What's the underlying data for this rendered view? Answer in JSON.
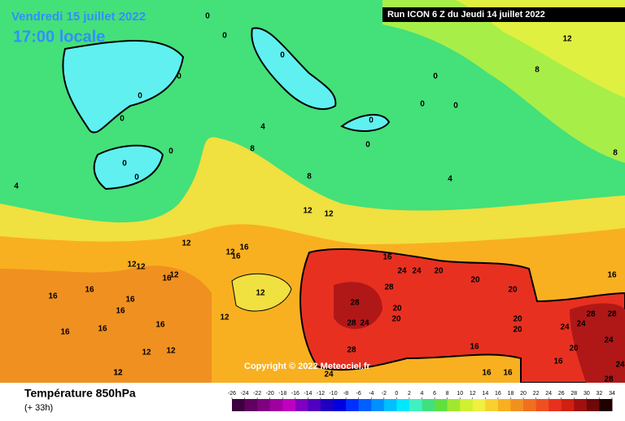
{
  "header": {
    "date": "Vendredi 15 juillet 2022",
    "time": "17:00 locale",
    "run": "Run ICON 6 Z du Jeudi 14 juillet 2022",
    "copyright": "Copyright © 2022 Meteociel.fr"
  },
  "footer": {
    "title": "Température 850hPa",
    "lead": "(+ 33h)"
  },
  "legend": {
    "ticks": [
      -26,
      -24,
      -22,
      -20,
      -18,
      -16,
      -14,
      -12,
      -10,
      -8,
      -6,
      -4,
      -2,
      0,
      2,
      4,
      6,
      8,
      10,
      12,
      14,
      16,
      18,
      20,
      22,
      24,
      26,
      28,
      30,
      32,
      34
    ],
    "colors": [
      "#3c0040",
      "#600060",
      "#800080",
      "#a000a0",
      "#c000c0",
      "#8000c0",
      "#5000c0",
      "#2000c0",
      "#0000e0",
      "#0030ff",
      "#0060ff",
      "#0090ff",
      "#00c0ff",
      "#00e8ff",
      "#40f0c0",
      "#40e080",
      "#60e040",
      "#a0e830",
      "#d0f030",
      "#f0f040",
      "#f8d030",
      "#f8b020",
      "#f09020",
      "#f07020",
      "#f05020",
      "#e83020",
      "#d02010",
      "#a01010",
      "#700808",
      "#200000"
    ]
  },
  "contour_labels": [
    0,
    0,
    0,
    0,
    0,
    0,
    0,
    0,
    0,
    0,
    0,
    0,
    0,
    0,
    4,
    4,
    4,
    8,
    8,
    8,
    8,
    12,
    12,
    12,
    12,
    12,
    12,
    12,
    12,
    12,
    12,
    12,
    16,
    16,
    16,
    16,
    16,
    16,
    16,
    16,
    16,
    16,
    16,
    16,
    16,
    16,
    16,
    24,
    24,
    20,
    20,
    20,
    28,
    28,
    20,
    20,
    28,
    24,
    28,
    20,
    20,
    24,
    24,
    28,
    28,
    24,
    20,
    16,
    24,
    28,
    24,
    12,
    12,
    12
  ]
}
